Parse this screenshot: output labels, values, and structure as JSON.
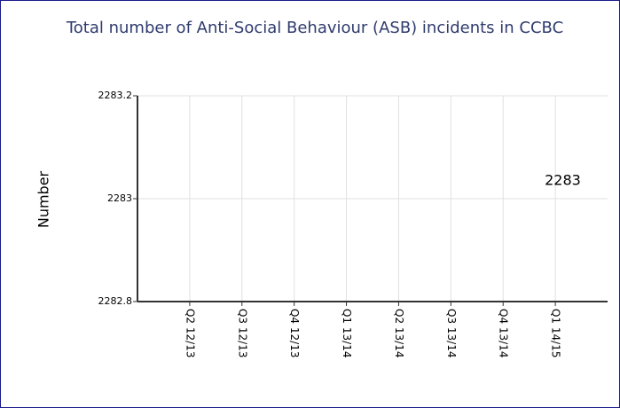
{
  "chart_data": {
    "type": "line",
    "title": "Total number of Anti-Social Behaviour (ASB) incidents in CCBC",
    "y_label": "Number",
    "categories": [
      "Q2 12/13",
      "Q3 12/13",
      "Q4 12/13",
      "Q1 13/14",
      "Q2 13/14",
      "Q3 13/14",
      "Q4 13/14",
      "Q1 14/15"
    ],
    "values": [
      null,
      null,
      null,
      null,
      null,
      null,
      null,
      2283
    ],
    "color": "#4472c4",
    "ylim": [
      2282.8,
      2283.2
    ],
    "yticks": [
      2282.8,
      2283,
      2283.2
    ],
    "grid": true
  }
}
